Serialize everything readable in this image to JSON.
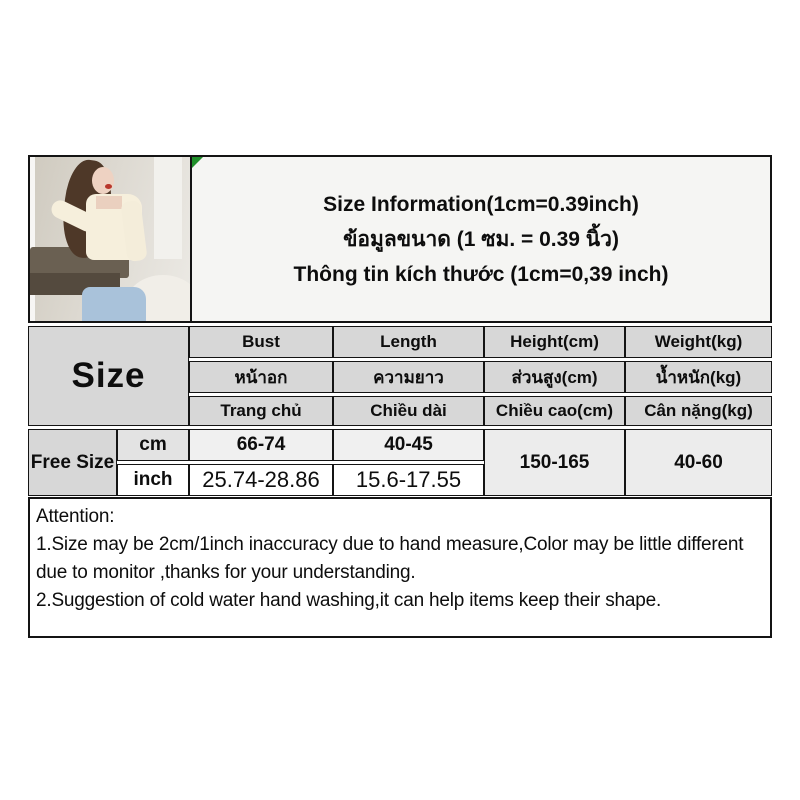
{
  "title": {
    "line_en": "Size Information(1cm=0.39inch)",
    "line_th": "ข้อมูลขนาด (1 ซม. = 0.39 นิ้ว)",
    "line_vi": "Thông tin kích thước (1cm=0,39 inch)"
  },
  "photo": {
    "description": "model wearing cream square-neck crop sweater and blue jeans"
  },
  "size_table": {
    "corner_label": "Size",
    "columns": [
      {
        "en": "Bust",
        "th": "หน้าอก",
        "vi": "Trang chủ"
      },
      {
        "en": "Length",
        "th": "ความยาว",
        "vi": "Chiều dài"
      },
      {
        "en": "Height(cm)",
        "th": "ส่วนสูง(cm)",
        "vi": "Chiều cao(cm)"
      },
      {
        "en": "Weight(kg)",
        "th": "น้ำหนัก(kg)",
        "vi": "Cân nặng(kg)"
      }
    ],
    "row_label": "Free Size",
    "units": [
      "cm",
      "inch"
    ],
    "values_cm": {
      "bust": "66-74",
      "length": "40-45"
    },
    "values_inch": {
      "bust": "25.74-28.86",
      "length": "15.6-17.55"
    },
    "height_range": "150-165",
    "weight_range": "40-60"
  },
  "attention": {
    "heading": "Attention:",
    "line1": "1.Size may be 2cm/1inch inaccuracy due to hand measure,Color may be little different due to monitor ,thanks for your understanding.",
    "line2": "2.Suggestion of cold water hand washing,it can help items keep their shape."
  },
  "colors": {
    "header_gray": "#d7d7d7",
    "light_gray": "#f0f0f0",
    "marker_green": "#1f8f2a",
    "border_black": "#141414",
    "title_bg": "#f5f5f3"
  }
}
